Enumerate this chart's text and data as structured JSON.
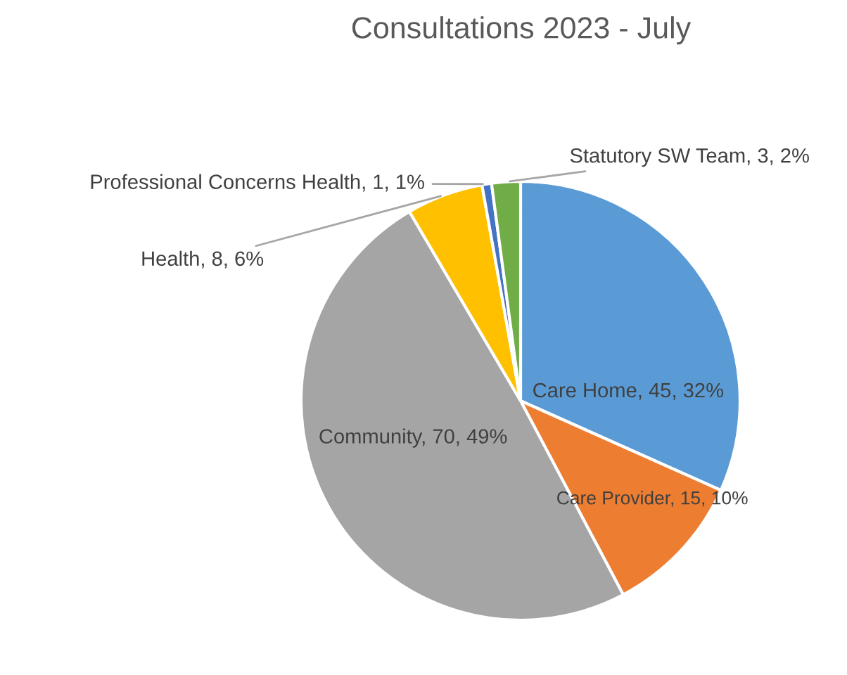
{
  "chart_data": {
    "type": "pie",
    "title": "Consultations 2023 - July",
    "categories": [
      "Care Home",
      "Care Provider",
      "Community",
      "Health",
      "Professional Concerns Health",
      "Statutory SW Team"
    ],
    "values": [
      45,
      15,
      70,
      8,
      1,
      3
    ],
    "value_labels": [
      "45, 32%",
      "15, 10%",
      "70, 49%",
      "8, 6%",
      "1, 1%",
      "3, 2%"
    ],
    "colors": [
      "#5b9bd5",
      "#ed7d31",
      "#a5a5a5",
      "#ffc000",
      "#4472c4",
      "#70ad47"
    ],
    "legend": false
  }
}
